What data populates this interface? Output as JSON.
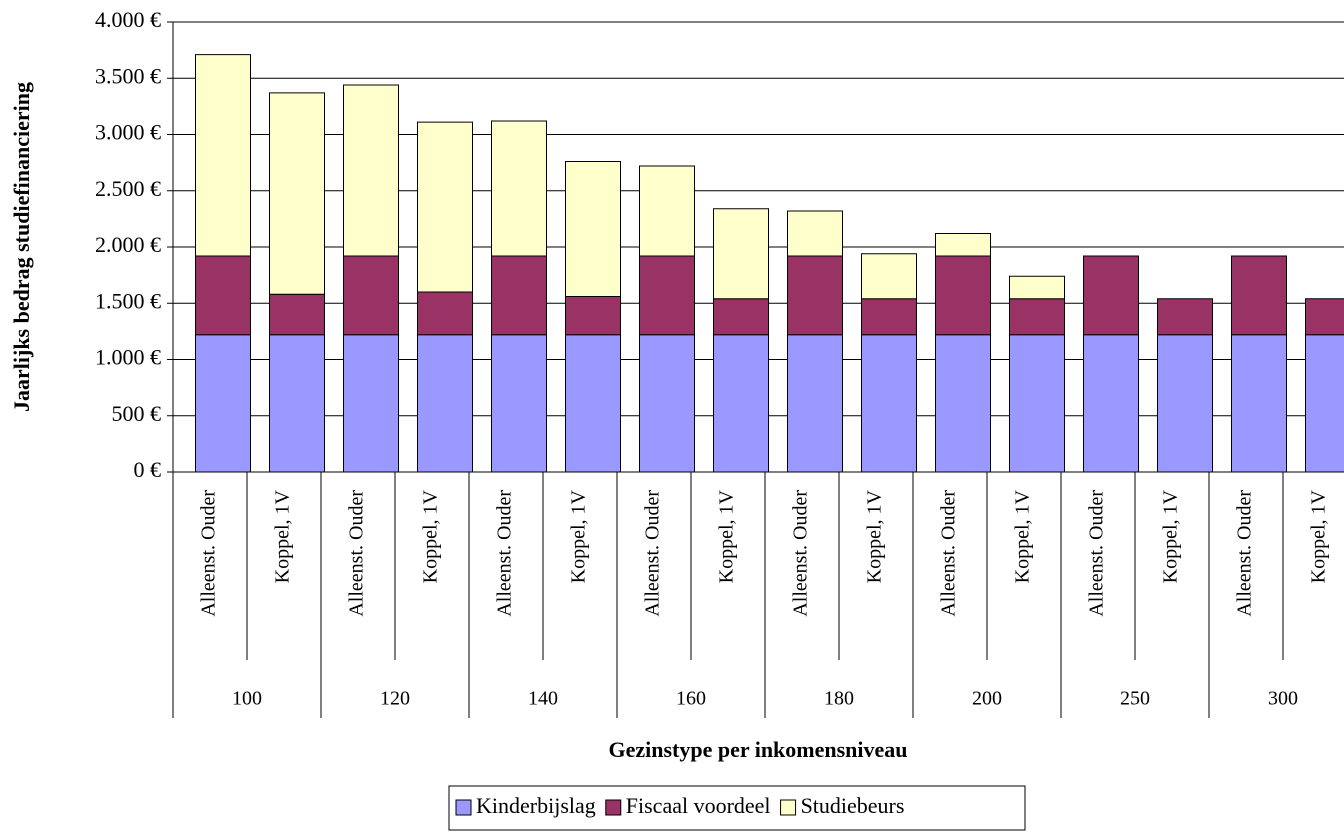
{
  "chart_data": {
    "type": "stacked-bar",
    "y_label": "Jaarlijks bedrag studiefinanciering",
    "x_label": "Gezinstype per inkomensniveau",
    "categories": [
      "Alleenst. Ouder",
      "Koppel, 1V",
      "Alleenst. Ouder",
      "Koppel, 1V",
      "Alleenst. Ouder",
      "Koppel, 1V",
      "Alleenst. Ouder",
      "Koppel, 1V",
      "Alleenst. Ouder",
      "Koppel, 1V",
      "Alleenst. Ouder",
      "Koppel, 1V",
      "Alleenst. Ouder",
      "Koppel, 1V",
      "Alleenst. Ouder",
      "Koppel, 1V"
    ],
    "groups": [
      "100",
      "120",
      "140",
      "160",
      "180",
      "200",
      "250",
      "300"
    ],
    "series": [
      {
        "name": "Kinderbijslag",
        "color": "#9999ff",
        "values": [
          1220,
          1220,
          1220,
          1220,
          1220,
          1220,
          1220,
          1220,
          1220,
          1220,
          1220,
          1220,
          1220,
          1220,
          1220,
          1220
        ]
      },
      {
        "name": "Fiscaal voordeel",
        "color": "#993366",
        "values": [
          700,
          360,
          700,
          380,
          700,
          340,
          700,
          320,
          700,
          320,
          700,
          320,
          700,
          320,
          700,
          320
        ]
      },
      {
        "name": "Studiebeurs",
        "color": "#ffffcc",
        "values": [
          1790,
          1790,
          1520,
          1510,
          1200,
          1200,
          800,
          800,
          400,
          400,
          200,
          200,
          0,
          0,
          0,
          0
        ]
      }
    ],
    "ylim": [
      0,
      4000
    ],
    "yticks": [
      {
        "value": 0,
        "label": "0 €"
      },
      {
        "value": 500,
        "label": "500 €"
      },
      {
        "value": 1000,
        "label": "1.000 €"
      },
      {
        "value": 1500,
        "label": "1.500 €"
      },
      {
        "value": 2000,
        "label": "2.000 €"
      },
      {
        "value": 2500,
        "label": "2.500 €"
      },
      {
        "value": 3000,
        "label": "3.000 €"
      },
      {
        "value": 3500,
        "label": "3.500 €"
      },
      {
        "value": 4000,
        "label": "4.000 €"
      }
    ],
    "grid": true,
    "legend": "bottom"
  }
}
